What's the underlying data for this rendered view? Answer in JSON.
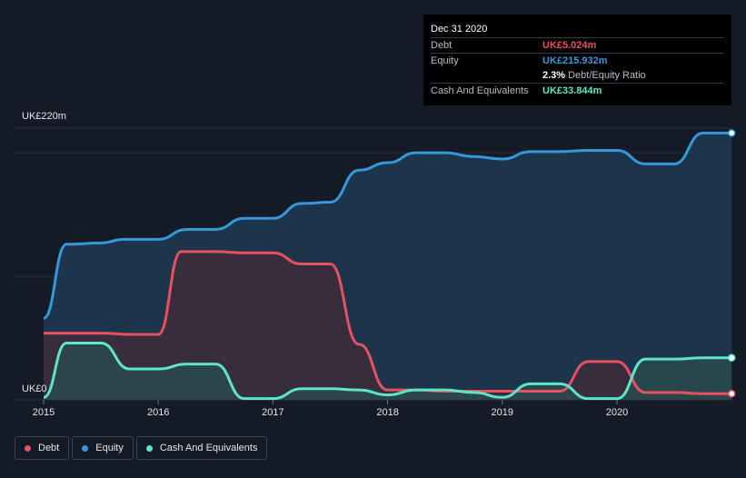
{
  "tooltip": {
    "date": "Dec 31 2020",
    "rows": [
      {
        "label": "Debt",
        "value": "UK£5.024m",
        "color": "#e8515f"
      },
      {
        "label": "Equity",
        "value": "UK£215.932m",
        "color": "#3498db"
      },
      {
        "label": "",
        "value": "2.3%",
        "extra": "Debt/Equity Ratio",
        "color": "#ffffff"
      },
      {
        "label": "Cash And Equivalents",
        "value": "UK£33.844m",
        "color": "#5ee5c9"
      }
    ]
  },
  "legend": [
    {
      "label": "Debt",
      "color": "#e8515f"
    },
    {
      "label": "Equity",
      "color": "#3498db"
    },
    {
      "label": "Cash And Equivalents",
      "color": "#5ee5c9"
    }
  ],
  "chart_data": {
    "type": "area",
    "y_unit": "UK£m",
    "ylim": [
      0,
      220
    ],
    "y_ticks": [
      {
        "value": 220,
        "label": "UK£220m"
      },
      {
        "value": 0,
        "label": "UK£0"
      }
    ],
    "x_ticks": [
      {
        "value": 2015.0,
        "label": "2015"
      },
      {
        "value": 2016.0,
        "label": "2016"
      },
      {
        "value": 2017.0,
        "label": "2017"
      },
      {
        "value": 2018.0,
        "label": "2018"
      },
      {
        "value": 2019.0,
        "label": "2019"
      },
      {
        "value": 2020.0,
        "label": "2020"
      }
    ],
    "xlim": [
      2014.95,
      2021.05
    ],
    "series": [
      {
        "name": "Equity",
        "color": "#3498db",
        "fill": "#1e3a52",
        "points": [
          [
            2015.0,
            66
          ],
          [
            2015.2,
            126
          ],
          [
            2015.5,
            127
          ],
          [
            2015.7,
            130
          ],
          [
            2016.0,
            130
          ],
          [
            2016.25,
            138
          ],
          [
            2016.5,
            138
          ],
          [
            2016.75,
            147
          ],
          [
            2017.0,
            147
          ],
          [
            2017.25,
            159
          ],
          [
            2017.5,
            160
          ],
          [
            2017.75,
            186
          ],
          [
            2018.0,
            192
          ],
          [
            2018.25,
            200
          ],
          [
            2018.5,
            200
          ],
          [
            2018.75,
            197
          ],
          [
            2019.0,
            195
          ],
          [
            2019.25,
            201
          ],
          [
            2019.5,
            201
          ],
          [
            2019.75,
            202
          ],
          [
            2020.0,
            202
          ],
          [
            2020.25,
            191
          ],
          [
            2020.5,
            191
          ],
          [
            2020.75,
            216
          ],
          [
            2021.0,
            216
          ]
        ]
      },
      {
        "name": "Debt",
        "color": "#e8515f",
        "fill": "#3d2b3b",
        "points": [
          [
            2015.0,
            54
          ],
          [
            2015.5,
            54
          ],
          [
            2015.75,
            53
          ],
          [
            2016.0,
            53
          ],
          [
            2016.2,
            120
          ],
          [
            2016.5,
            120
          ],
          [
            2016.75,
            119
          ],
          [
            2017.0,
            119
          ],
          [
            2017.25,
            110
          ],
          [
            2017.5,
            110
          ],
          [
            2017.75,
            45
          ],
          [
            2018.0,
            8
          ],
          [
            2018.25,
            8
          ],
          [
            2018.5,
            7
          ],
          [
            2018.75,
            7
          ],
          [
            2019.0,
            7
          ],
          [
            2019.25,
            7
          ],
          [
            2019.5,
            7
          ],
          [
            2019.75,
            31
          ],
          [
            2020.0,
            31
          ],
          [
            2020.25,
            6
          ],
          [
            2020.5,
            6
          ],
          [
            2020.75,
            5
          ],
          [
            2021.0,
            5
          ]
        ]
      },
      {
        "name": "Cash And Equivalents",
        "color": "#5ee5c9",
        "fill": "#2a4a4e",
        "points": [
          [
            2015.0,
            2
          ],
          [
            2015.2,
            46
          ],
          [
            2015.5,
            46
          ],
          [
            2015.75,
            25
          ],
          [
            2016.0,
            25
          ],
          [
            2016.25,
            29
          ],
          [
            2016.5,
            29
          ],
          [
            2016.75,
            1
          ],
          [
            2017.0,
            1
          ],
          [
            2017.25,
            9
          ],
          [
            2017.5,
            9
          ],
          [
            2017.75,
            8
          ],
          [
            2018.0,
            4
          ],
          [
            2018.25,
            8
          ],
          [
            2018.5,
            8
          ],
          [
            2018.75,
            6
          ],
          [
            2019.0,
            2
          ],
          [
            2019.25,
            13
          ],
          [
            2019.5,
            13
          ],
          [
            2019.75,
            1
          ],
          [
            2020.0,
            1
          ],
          [
            2020.25,
            33
          ],
          [
            2020.5,
            33
          ],
          [
            2020.75,
            34
          ],
          [
            2021.0,
            34
          ]
        ]
      }
    ]
  }
}
